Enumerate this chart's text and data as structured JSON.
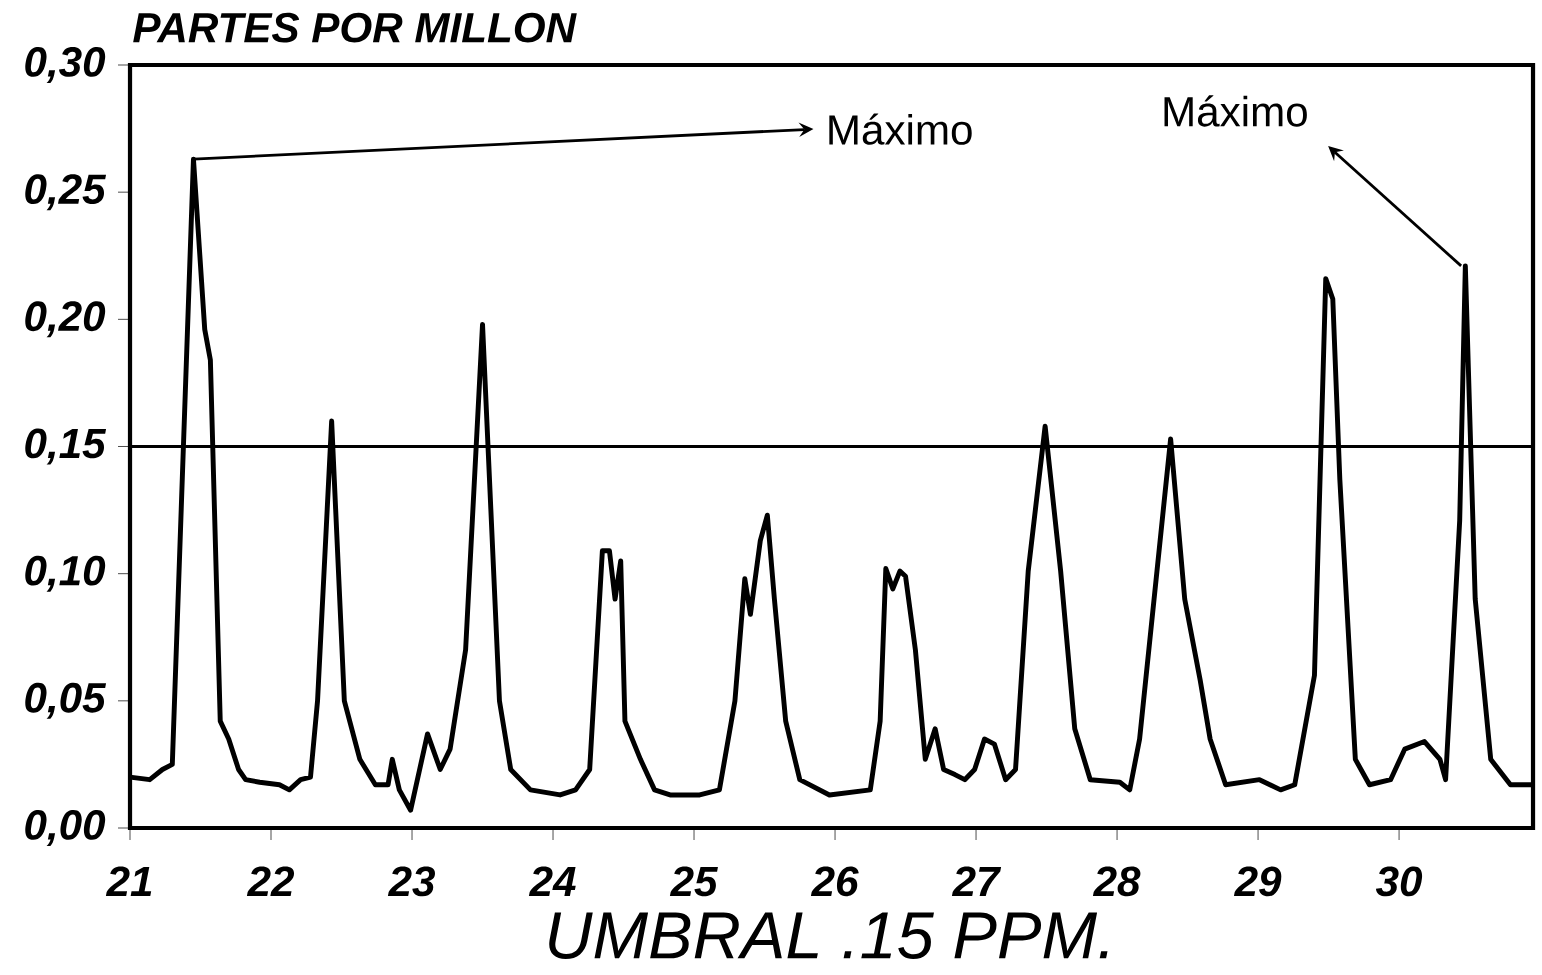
{
  "chart_data": {
    "type": "line",
    "xlabel": "UMBRAL .15 PPM.",
    "ylabel": "PARTES POR MILLON",
    "x": [
      21.0,
      21.14,
      21.23,
      21.3,
      21.45,
      21.53,
      21.57,
      21.64,
      21.7,
      21.77,
      21.82,
      21.92,
      22.06,
      22.13,
      22.21,
      22.28,
      22.33,
      22.43,
      22.52,
      22.63,
      22.74,
      22.83,
      22.86,
      22.91,
      22.99,
      23.11,
      23.2,
      23.27,
      23.38,
      23.5,
      23.62,
      23.7,
      23.84,
      24.05,
      24.16,
      24.26,
      24.35,
      24.4,
      24.44,
      24.48,
      24.51,
      24.62,
      24.72,
      24.83,
      25.04,
      25.18,
      25.29,
      25.36,
      25.4,
      25.47,
      25.52,
      25.57,
      25.65,
      25.75,
      25.96,
      26.25,
      26.32,
      26.36,
      26.41,
      26.46,
      26.5,
      26.57,
      26.64,
      26.71,
      26.77,
      26.85,
      26.92,
      26.99,
      27.06,
      27.13,
      27.21,
      27.28,
      27.37,
      27.49,
      27.6,
      27.7,
      27.81,
      28.02,
      28.09,
      28.16,
      28.38,
      28.48,
      28.59,
      28.66,
      28.77,
      29.01,
      29.16,
      29.26,
      29.4,
      29.48,
      29.53,
      29.58,
      29.69,
      29.79,
      29.94,
      30.04,
      30.18,
      30.29,
      30.33,
      30.43,
      30.47,
      30.54,
      30.65,
      30.79,
      30.95
    ],
    "values": [
      0.02,
      0.019,
      0.023,
      0.025,
      0.263,
      0.196,
      0.184,
      0.042,
      0.035,
      0.023,
      0.019,
      0.018,
      0.017,
      0.015,
      0.019,
      0.02,
      0.05,
      0.16,
      0.05,
      0.027,
      0.017,
      0.017,
      0.027,
      0.015,
      0.007,
      0.037,
      0.023,
      0.031,
      0.07,
      0.198,
      0.05,
      0.023,
      0.015,
      0.013,
      0.015,
      0.023,
      0.109,
      0.109,
      0.09,
      0.105,
      0.042,
      0.027,
      0.015,
      0.013,
      0.013,
      0.015,
      0.05,
      0.098,
      0.084,
      0.113,
      0.123,
      0.09,
      0.042,
      0.019,
      0.013,
      0.015,
      0.042,
      0.102,
      0.094,
      0.101,
      0.099,
      0.07,
      0.027,
      0.039,
      0.023,
      0.021,
      0.019,
      0.023,
      0.035,
      0.033,
      0.019,
      0.023,
      0.101,
      0.158,
      0.101,
      0.039,
      0.019,
      0.018,
      0.015,
      0.035,
      0.153,
      0.09,
      0.058,
      0.035,
      0.017,
      0.019,
      0.015,
      0.017,
      0.06,
      0.216,
      0.208,
      0.137,
      0.027,
      0.017,
      0.019,
      0.031,
      0.034,
      0.027,
      0.019,
      0.121,
      0.221,
      0.09,
      0.027,
      0.017,
      0.017
    ],
    "color": "#000000",
    "xlim": [
      21,
      30.95
    ],
    "xticks": [
      21,
      22,
      23,
      24,
      25,
      26,
      27,
      28,
      29,
      30
    ],
    "ylim": [
      0,
      0.3
    ],
    "yticks": [
      {
        "value": 0,
        "label": "0,00"
      },
      {
        "value": 0.05,
        "label": "0,05"
      },
      {
        "value": 0.1,
        "label": "0,10"
      },
      {
        "value": 0.15,
        "label": "0,15"
      },
      {
        "value": 0.2,
        "label": "0,20"
      },
      {
        "value": 0.25,
        "label": "0,25"
      },
      {
        "value": 0.3,
        "label": "0,30"
      }
    ],
    "ref_lines": [
      {
        "axis": "y",
        "value": 0.15,
        "color": "#000000"
      }
    ],
    "annotations": [
      {
        "text": "Máximo",
        "x": 21.45,
        "y": 0.263
      },
      {
        "text": "Máximo",
        "x": 30.44,
        "y": 0.221
      }
    ]
  }
}
